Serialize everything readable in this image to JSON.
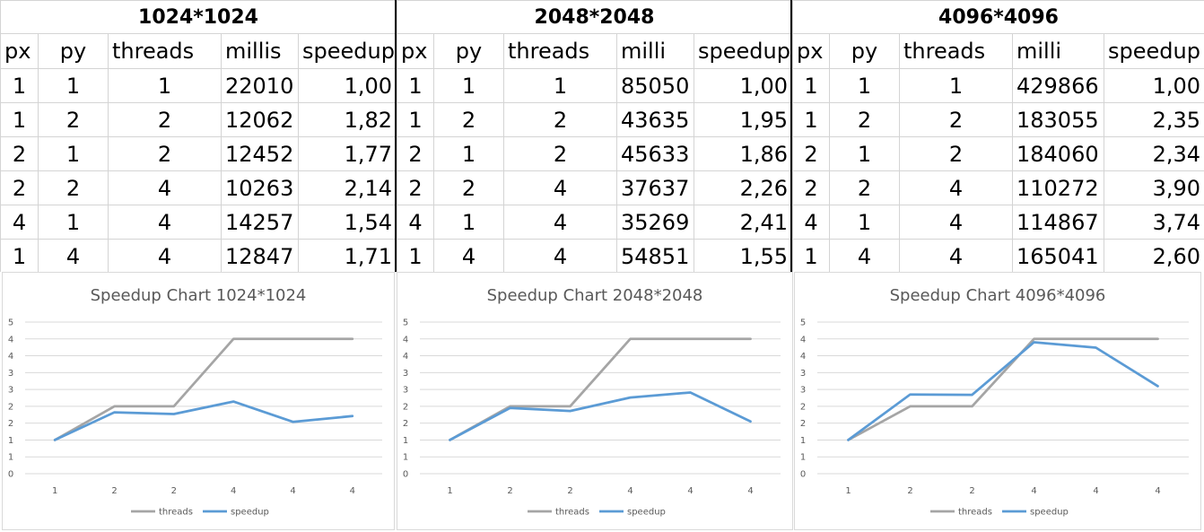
{
  "tables": [
    {
      "title": "1024*1024",
      "headers": [
        "px",
        "py",
        "threads",
        "millis",
        "speedup"
      ],
      "rows": [
        [
          "1",
          "1",
          "1",
          "22010",
          "1,00"
        ],
        [
          "1",
          "2",
          "2",
          "12062",
          "1,82"
        ],
        [
          "2",
          "1",
          "2",
          "12452",
          "1,77"
        ],
        [
          "2",
          "2",
          "4",
          "10263",
          "2,14"
        ],
        [
          "4",
          "1",
          "4",
          "14257",
          "1,54"
        ],
        [
          "1",
          "4",
          "4",
          "12847",
          "1,71"
        ]
      ]
    },
    {
      "title": "2048*2048",
      "headers": [
        "px",
        "py",
        "threads",
        "milli",
        "speedup"
      ],
      "rows": [
        [
          "1",
          "1",
          "1",
          "85050",
          "1,00"
        ],
        [
          "1",
          "2",
          "2",
          "43635",
          "1,95"
        ],
        [
          "2",
          "1",
          "2",
          "45633",
          "1,86"
        ],
        [
          "2",
          "2",
          "4",
          "37637",
          "2,26"
        ],
        [
          "4",
          "1",
          "4",
          "35269",
          "2,41"
        ],
        [
          "1",
          "4",
          "4",
          "54851",
          "1,55"
        ]
      ]
    },
    {
      "title": "4096*4096",
      "headers": [
        "px",
        "py",
        "threads",
        "milli",
        "speedup"
      ],
      "rows": [
        [
          "1",
          "1",
          "1",
          "429866",
          "1,00"
        ],
        [
          "1",
          "2",
          "2",
          "183055",
          "2,35"
        ],
        [
          "2",
          "1",
          "2",
          "184060",
          "2,34"
        ],
        [
          "2",
          "2",
          "4",
          "110272",
          "3,90"
        ],
        [
          "4",
          "1",
          "4",
          "114867",
          "3,74"
        ],
        [
          "1",
          "4",
          "4",
          "165041",
          "2,60"
        ]
      ]
    }
  ],
  "chart_data": [
    {
      "type": "line",
      "title": "Speedup Chart 1024*1024",
      "categories": [
        "1",
        "2",
        "2",
        "4",
        "4",
        "4"
      ],
      "y_tick_labels": [
        "0",
        "1",
        "1",
        "2",
        "2",
        "3",
        "3",
        "4",
        "4",
        "5"
      ],
      "ylim": [
        0,
        4.5
      ],
      "grid": true,
      "legend": "bottom",
      "series": [
        {
          "name": "threads",
          "color": "#a5a5a5",
          "values": [
            1,
            2,
            2,
            4,
            4,
            4
          ]
        },
        {
          "name": "speedup",
          "color": "#5b9bd5",
          "values": [
            1.0,
            1.82,
            1.77,
            2.14,
            1.54,
            1.71
          ]
        }
      ]
    },
    {
      "type": "line",
      "title": "Speedup Chart 2048*2048",
      "categories": [
        "1",
        "2",
        "2",
        "4",
        "4",
        "4"
      ],
      "y_tick_labels": [
        "0",
        "1",
        "1",
        "2",
        "2",
        "3",
        "3",
        "4",
        "4",
        "5"
      ],
      "ylim": [
        0,
        4.5
      ],
      "grid": true,
      "legend": "bottom",
      "series": [
        {
          "name": "threads",
          "color": "#a5a5a5",
          "values": [
            1,
            2,
            2,
            4,
            4,
            4
          ]
        },
        {
          "name": "speedup",
          "color": "#5b9bd5",
          "values": [
            1.0,
            1.95,
            1.86,
            2.26,
            2.41,
            1.55
          ]
        }
      ]
    },
    {
      "type": "line",
      "title": "Speedup Chart 4096*4096",
      "categories": [
        "1",
        "2",
        "2",
        "4",
        "4",
        "4"
      ],
      "y_tick_labels": [
        "0",
        "1",
        "1",
        "2",
        "2",
        "3",
        "3",
        "4",
        "4",
        "5"
      ],
      "ylim": [
        0,
        4.5
      ],
      "grid": true,
      "legend": "bottom",
      "series": [
        {
          "name": "threads",
          "color": "#a5a5a5",
          "values": [
            1,
            2,
            2,
            4,
            4,
            4
          ]
        },
        {
          "name": "speedup",
          "color": "#5b9bd5",
          "values": [
            1.0,
            2.35,
            2.34,
            3.9,
            3.74,
            2.6
          ]
        }
      ]
    }
  ]
}
